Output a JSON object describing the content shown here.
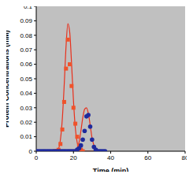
{
  "chart_data": {
    "type": "scatter",
    "x_label": "Time (min)",
    "y_label": "Protein Concentrations (mM)",
    "xlim": [
      0,
      80
    ],
    "xticks": [
      0,
      20,
      40,
      60,
      80
    ],
    "ylim": [
      0,
      0.1
    ],
    "yticks": [
      0,
      0.01,
      0.02,
      0.03,
      0.04,
      0.05,
      0.06,
      0.07,
      0.08,
      0.09,
      0.1
    ],
    "grid": false,
    "series": [
      {
        "type": "line",
        "color": "#e8301c",
        "x": [
          0,
          10,
          12,
          13,
          14,
          15,
          16,
          17,
          18,
          19,
          20,
          21,
          22,
          23,
          25,
          36
        ],
        "values": [
          0,
          0,
          0.002,
          0.008,
          0.022,
          0.045,
          0.072,
          0.088,
          0.082,
          0.06,
          0.035,
          0.016,
          0.006,
          0.002,
          0,
          0
        ]
      },
      {
        "type": "line",
        "color": "#e8301c",
        "x": [
          0,
          21,
          22,
          23,
          24,
          25,
          26,
          27,
          28,
          29,
          30,
          31,
          32,
          33,
          36
        ],
        "values": [
          0,
          0,
          0.002,
          0.006,
          0.014,
          0.023,
          0.029,
          0.03,
          0.026,
          0.018,
          0.009,
          0.004,
          0.001,
          0,
          0
        ]
      },
      {
        "type": "scatter",
        "marker": "square",
        "color": "#f0522a",
        "x": [
          10,
          11,
          12,
          13,
          14,
          15,
          16,
          17,
          18,
          19,
          20,
          21,
          22,
          23,
          24,
          25
        ],
        "values": [
          0,
          0,
          0.001,
          0.005,
          0.015,
          0.034,
          0.057,
          0.077,
          0.06,
          0.045,
          0.03,
          0.019,
          0.01,
          0.004,
          0.001,
          0
        ]
      },
      {
        "type": "scatter",
        "marker": "circle",
        "color": "#1f2a9c",
        "x": [
          0,
          1,
          2,
          3,
          4,
          5,
          6,
          7,
          8,
          9,
          10,
          11,
          12,
          13,
          14,
          15,
          16,
          17,
          18,
          19,
          20,
          21,
          22,
          23,
          24,
          25,
          26,
          27,
          28,
          29,
          30,
          31,
          32,
          33,
          34,
          35,
          36,
          37
        ],
        "values": [
          0,
          0,
          0,
          0,
          0,
          0,
          0,
          0,
          0,
          0,
          0,
          0,
          0,
          0,
          0,
          0,
          0,
          0,
          0,
          0,
          0,
          0,
          0.001,
          0.002,
          0.004,
          0.008,
          0.014,
          0.024,
          0.025,
          0.017,
          0.008,
          0.003,
          0.001,
          0,
          0,
          0,
          0,
          0
        ]
      }
    ]
  }
}
